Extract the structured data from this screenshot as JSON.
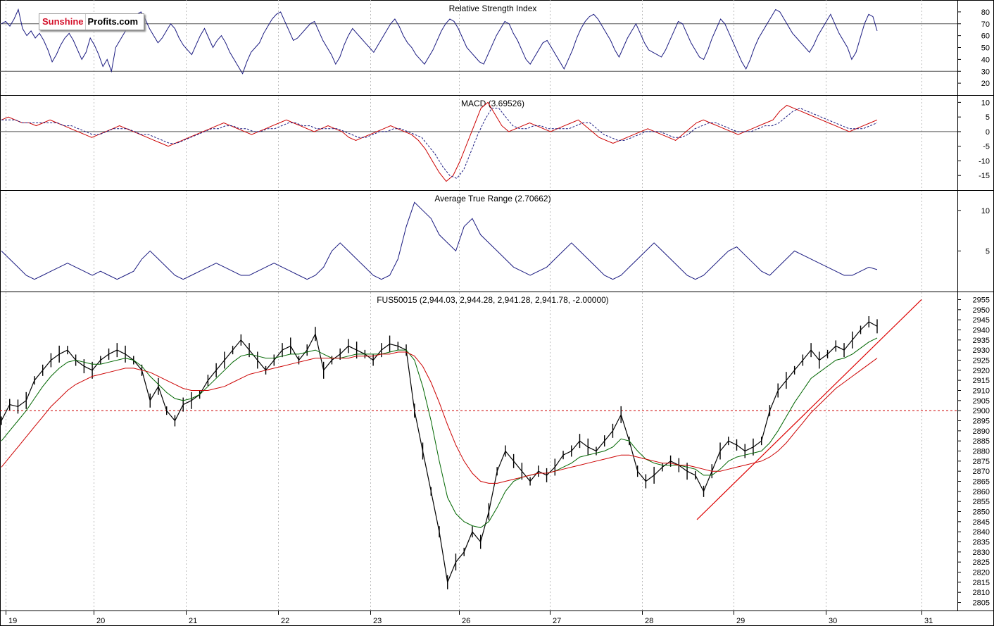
{
  "logo": {
    "part1": "Sunshine",
    "part2": "Profits.com"
  },
  "x_axis": {
    "labels": [
      "19",
      "20",
      "21",
      "22",
      "23",
      "26",
      "27",
      "28",
      "29",
      "30",
      "31"
    ]
  },
  "colors": {
    "price": "#000000",
    "indicator": "#1a1a80",
    "signal": "#1a1a80",
    "macd_line": "#cc0000",
    "ma_fast": "#006600",
    "ma_slow": "#cc0000",
    "trendline": "#dd0000",
    "reference": "#cc0000",
    "grid": "#bbbbbb"
  },
  "chart_data": [
    {
      "type": "line",
      "title": "Relative Strength Index",
      "y_ticks": [
        80,
        70,
        60,
        50,
        40,
        30,
        20
      ],
      "ylim": [
        10,
        90
      ],
      "reference_lines": [
        70,
        30
      ],
      "series": [
        {
          "values": [
            70,
            72,
            68,
            74,
            82,
            66,
            60,
            64,
            58,
            62,
            56,
            48,
            38,
            44,
            52,
            58,
            62,
            56,
            48,
            40,
            46,
            58,
            52,
            44,
            34,
            40,
            30,
            50,
            56,
            62,
            68,
            72,
            78,
            80,
            74,
            66,
            60,
            54,
            58,
            64,
            70,
            66,
            58,
            52,
            48,
            44,
            52,
            60,
            66,
            58,
            50,
            56,
            60,
            54,
            46,
            40,
            34,
            28,
            38,
            46,
            50,
            54,
            62,
            68,
            74,
            78,
            80,
            72,
            64,
            56,
            58,
            62,
            66,
            70,
            72,
            64,
            56,
            50,
            44,
            36,
            42,
            52,
            60,
            66,
            62,
            58,
            54,
            50,
            46,
            52,
            58,
            64,
            70,
            74,
            68,
            60,
            54,
            50,
            44,
            40,
            36,
            42,
            48,
            56,
            64,
            70,
            74,
            72,
            66,
            58,
            50,
            46,
            42,
            38,
            36,
            44,
            52,
            60,
            66,
            72,
            70,
            62,
            56,
            48,
            40,
            36,
            42,
            48,
            54,
            56,
            50,
            44,
            38,
            32,
            40,
            48,
            58,
            66,
            72,
            76,
            78,
            74,
            68,
            62,
            56,
            48,
            42,
            50,
            58,
            64,
            70,
            62,
            54,
            48,
            46,
            44,
            42,
            48,
            56,
            64,
            72,
            70,
            62,
            54,
            48,
            42,
            40,
            48,
            58,
            66,
            74,
            70,
            62,
            54,
            46,
            38,
            32,
            40,
            50,
            58,
            64,
            70,
            76,
            82,
            80,
            74,
            68,
            62,
            58,
            54,
            50,
            46,
            52,
            60,
            66,
            72,
            78,
            70,
            62,
            56,
            50,
            40,
            46,
            58,
            70,
            78,
            76,
            64
          ]
        }
      ]
    },
    {
      "type": "line",
      "title": "MACD (3.69526)",
      "y_ticks": [
        10,
        5,
        0,
        -5,
        -10,
        -15
      ],
      "ylim": [
        -20,
        12.5
      ],
      "reference_lines": [
        0
      ],
      "series": [
        {
          "values": [
            4,
            5,
            4,
            3,
            3,
            2,
            3,
            4,
            3,
            2,
            1,
            0,
            -1,
            -2,
            -1,
            0,
            1,
            2,
            1,
            0,
            -1,
            -2,
            -3,
            -4,
            -5,
            -4,
            -3,
            -2,
            -1,
            0,
            1,
            2,
            3,
            2,
            1,
            0,
            -1,
            0,
            1,
            2,
            3,
            4,
            3,
            2,
            1,
            0,
            1,
            2,
            1,
            0,
            -2,
            -3,
            -2,
            -1,
            0,
            1,
            2,
            1,
            0,
            -1,
            -3,
            -6,
            -10,
            -14,
            -17,
            -15,
            -10,
            -4,
            2,
            8,
            10,
            6,
            2,
            0,
            1,
            2,
            3,
            2,
            1,
            0,
            1,
            2,
            3,
            4,
            2,
            0,
            -2,
            -3,
            -4,
            -3,
            -2,
            -1,
            0,
            1,
            0,
            -1,
            -2,
            -3,
            -1,
            1,
            3,
            4,
            3,
            2,
            1,
            0,
            -1,
            0,
            1,
            2,
            3,
            4,
            7,
            9,
            8,
            7,
            6,
            5,
            4,
            3,
            2,
            1,
            0,
            1,
            2,
            3,
            4
          ]
        },
        {
          "values": [
            4,
            4,
            4,
            3,
            3,
            3,
            3,
            3,
            3,
            2,
            2,
            1,
            0,
            -1,
            -1,
            0,
            1,
            1,
            1,
            0,
            -1,
            -1,
            -2,
            -3,
            -4,
            -4,
            -3,
            -2,
            -1,
            0,
            1,
            1,
            2,
            2,
            1,
            1,
            0,
            0,
            1,
            1,
            2,
            3,
            3,
            2,
            2,
            1,
            1,
            1,
            1,
            0,
            -1,
            -2,
            -2,
            -1,
            0,
            0,
            1,
            1,
            0,
            -1,
            -2,
            -5,
            -8,
            -12,
            -15,
            -16,
            -13,
            -7,
            -1,
            4,
            8,
            8,
            5,
            2,
            1,
            1,
            2,
            2,
            1,
            1,
            1,
            1,
            2,
            3,
            3,
            1,
            -1,
            -2,
            -3,
            -3,
            -2,
            -1,
            0,
            0,
            0,
            -1,
            -2,
            -2,
            -1,
            1,
            2,
            3,
            3,
            2,
            1,
            0,
            0,
            0,
            1,
            2,
            2,
            3,
            5,
            7,
            8,
            7,
            6,
            5,
            4,
            3,
            2,
            1,
            1,
            1,
            2,
            3
          ]
        }
      ]
    },
    {
      "type": "line",
      "title": "Average True Range (2.70662)",
      "y_ticks": [
        10,
        5
      ],
      "ylim": [
        0,
        12.5
      ],
      "series": [
        {
          "values": [
            5,
            4,
            3,
            2,
            1.5,
            2,
            2.5,
            3,
            3.5,
            3,
            2.5,
            2,
            2.5,
            2,
            1.5,
            2,
            2.5,
            4,
            5,
            4,
            3,
            2,
            1.5,
            2,
            2.5,
            3,
            3.5,
            3,
            2.5,
            2,
            2,
            2.5,
            3,
            3.5,
            3,
            2.5,
            2,
            1.5,
            2,
            3,
            5,
            6,
            5,
            4,
            3,
            2,
            1.5,
            2,
            4,
            8,
            11,
            10,
            9,
            7,
            6,
            5,
            8,
            9,
            7,
            6,
            5,
            4,
            3,
            2.5,
            2,
            2.5,
            3,
            4,
            5,
            6,
            5,
            4,
            3,
            2,
            1.5,
            2,
            3,
            4,
            5,
            6,
            5,
            4,
            3,
            2,
            1.5,
            2,
            3,
            4,
            5,
            5.5,
            4.5,
            3.5,
            2.5,
            2,
            3,
            4,
            5,
            4.5,
            4,
            3.5,
            3,
            2.5,
            2,
            2,
            2.5,
            3,
            2.7
          ]
        }
      ]
    },
    {
      "type": "line",
      "title": "FUS50015 (2,944.03, 2,944.28, 2,941.28, 2,941.78, -2.00000)",
      "y_ticks": [
        2955,
        2950,
        2945,
        2940,
        2935,
        2930,
        2925,
        2920,
        2915,
        2910,
        2905,
        2900,
        2895,
        2890,
        2885,
        2880,
        2875,
        2870,
        2865,
        2860,
        2855,
        2850,
        2845,
        2840,
        2835,
        2830,
        2825,
        2820,
        2815,
        2810,
        2805
      ],
      "ylim": [
        2801,
        2959
      ],
      "reference_lines": [
        2900
      ],
      "series": [
        {
          "name": "price",
          "values": [
            2895,
            2903,
            2902,
            2905,
            2915,
            2920,
            2925,
            2928,
            2930,
            2925,
            2922,
            2920,
            2925,
            2928,
            2930,
            2928,
            2925,
            2920,
            2905,
            2912,
            2900,
            2895,
            2903,
            2905,
            2908,
            2915,
            2920,
            2925,
            2930,
            2935,
            2930,
            2925,
            2920,
            2925,
            2930,
            2932,
            2925,
            2930,
            2938,
            2920,
            2925,
            2928,
            2932,
            2930,
            2928,
            2925,
            2930,
            2933,
            2932,
            2930,
            2900,
            2880,
            2860,
            2840,
            2815,
            2825,
            2830,
            2840,
            2835,
            2850,
            2870,
            2880,
            2875,
            2870,
            2865,
            2870,
            2868,
            2872,
            2878,
            2880,
            2885,
            2882,
            2880,
            2885,
            2890,
            2898,
            2885,
            2870,
            2865,
            2868,
            2872,
            2875,
            2873,
            2870,
            2868,
            2860,
            2870,
            2880,
            2885,
            2883,
            2880,
            2882,
            2885,
            2900,
            2910,
            2915,
            2920,
            2925,
            2930,
            2925,
            2928,
            2932,
            2930,
            2935,
            2940,
            2944,
            2941.78
          ]
        },
        {
          "name": "ma_fast",
          "values": [
            2885,
            2890,
            2895,
            2900,
            2906,
            2912,
            2917,
            2921,
            2924,
            2925,
            2924,
            2923,
            2923,
            2924,
            2925,
            2926,
            2925,
            2922,
            2917,
            2913,
            2909,
            2906,
            2905,
            2906,
            2908,
            2912,
            2916,
            2920,
            2924,
            2927,
            2928,
            2927,
            2926,
            2926,
            2927,
            2928,
            2928,
            2929,
            2930,
            2928,
            2926,
            2926,
            2927,
            2928,
            2928,
            2928,
            2928,
            2929,
            2930,
            2930,
            2925,
            2912,
            2895,
            2875,
            2857,
            2849,
            2845,
            2843,
            2842,
            2845,
            2852,
            2860,
            2865,
            2867,
            2868,
            2869,
            2869,
            2870,
            2872,
            2874,
            2877,
            2878,
            2879,
            2880,
            2882,
            2886,
            2885,
            2880,
            2876,
            2874,
            2873,
            2873,
            2873,
            2872,
            2871,
            2868,
            2868,
            2871,
            2875,
            2877,
            2878,
            2879,
            2880,
            2884,
            2890,
            2897,
            2904,
            2910,
            2916,
            2919,
            2922,
            2925,
            2926,
            2928,
            2931,
            2934,
            2936
          ]
        },
        {
          "name": "ma_slow",
          "values": [
            2872,
            2877,
            2882,
            2887,
            2892,
            2897,
            2902,
            2906,
            2910,
            2913,
            2915,
            2917,
            2918,
            2919,
            2920,
            2921,
            2921,
            2920,
            2919,
            2917,
            2915,
            2913,
            2911,
            2910,
            2910,
            2910,
            2911,
            2912,
            2914,
            2916,
            2918,
            2919,
            2920,
            2921,
            2922,
            2923,
            2924,
            2925,
            2926,
            2926,
            2926,
            2926,
            2926,
            2927,
            2927,
            2927,
            2928,
            2928,
            2929,
            2929,
            2927,
            2922,
            2914,
            2904,
            2893,
            2883,
            2875,
            2869,
            2865,
            2864,
            2864,
            2865,
            2866,
            2867,
            2868,
            2869,
            2869,
            2870,
            2871,
            2872,
            2873,
            2874,
            2875,
            2876,
            2877,
            2878,
            2878,
            2877,
            2876,
            2875,
            2874,
            2874,
            2873,
            2873,
            2872,
            2871,
            2870,
            2870,
            2871,
            2872,
            2873,
            2874,
            2875,
            2877,
            2880,
            2884,
            2889,
            2894,
            2899,
            2903,
            2907,
            2911,
            2914,
            2917,
            2920,
            2923,
            2926
          ]
        }
      ],
      "trendline": {
        "from": [
          28.6,
          2846
        ],
        "to": [
          31,
          2955
        ]
      }
    }
  ]
}
